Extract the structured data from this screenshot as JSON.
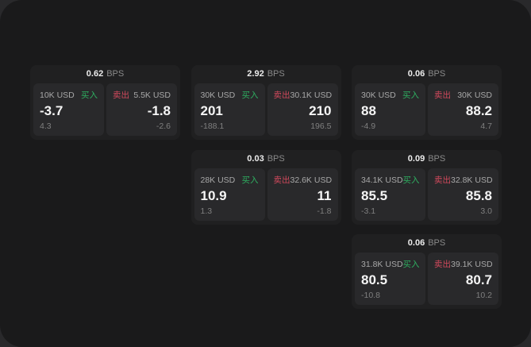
{
  "page": {
    "backdrop_color": "#29292b",
    "panel_color": "#1a1a1b",
    "card_color": "#202021",
    "cell_color": "#29292b",
    "buy_color": "#2eae60",
    "sell_color": "#d1495c"
  },
  "labels": {
    "buy": "买入",
    "sell": "卖出",
    "bps_unit": "BPS"
  },
  "cards": [
    {
      "row": 1,
      "col": 1,
      "bps": "0.62",
      "buy": {
        "size": "10K USD",
        "price": "-3.7",
        "delta": "4.3"
      },
      "sell": {
        "size": "5.5K USD",
        "price": "-1.8",
        "delta": "-2.6"
      }
    },
    {
      "row": 1,
      "col": 2,
      "bps": "2.92",
      "buy": {
        "size": "30K USD",
        "price": "201",
        "delta": "-188.1"
      },
      "sell": {
        "size": "30.1K USD",
        "price": "210",
        "delta": "196.5"
      }
    },
    {
      "row": 1,
      "col": 3,
      "bps": "0.06",
      "buy": {
        "size": "30K USD",
        "price": "88",
        "delta": "-4.9"
      },
      "sell": {
        "size": "30K USD",
        "price": "88.2",
        "delta": "4.7"
      }
    },
    {
      "row": 2,
      "col": 2,
      "bps": "0.03",
      "buy": {
        "size": "28K USD",
        "price": "10.9",
        "delta": "1.3"
      },
      "sell": {
        "size": "32.6K USD",
        "price": "11",
        "delta": "-1.8"
      }
    },
    {
      "row": 2,
      "col": 3,
      "bps": "0.09",
      "buy": {
        "size": "34.1K USD",
        "price": "85.5",
        "delta": "-3.1"
      },
      "sell": {
        "size": "32.8K USD",
        "price": "85.8",
        "delta": "3.0"
      }
    },
    {
      "row": 3,
      "col": 3,
      "bps": "0.06",
      "buy": {
        "size": "31.8K USD",
        "price": "80.5",
        "delta": "-10.8"
      },
      "sell": {
        "size": "39.1K USD",
        "price": "80.7",
        "delta": "10.2"
      }
    }
  ]
}
